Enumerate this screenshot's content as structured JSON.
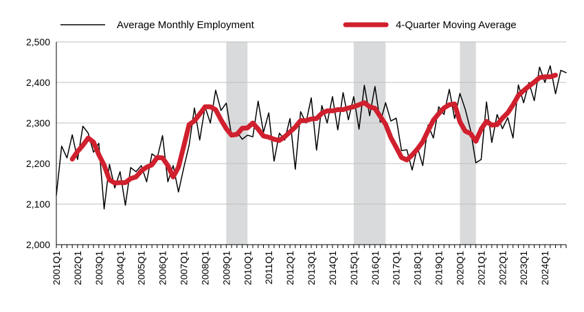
{
  "chart_data": {
    "type": "line",
    "title": "",
    "xlabel": "",
    "ylabel": "",
    "ylim": [
      2000,
      2500
    ],
    "yticks": [
      2000,
      2100,
      2200,
      2300,
      2400,
      2500
    ],
    "ytick_labels": [
      "2,000",
      "2,100",
      "2,200",
      "2,300",
      "2,400",
      "2,500"
    ],
    "x_start": "2001Q1",
    "x_tick_labels": [
      "2001Q1",
      "2002Q1",
      "2003Q1",
      "2004Q1",
      "2005Q1",
      "2006Q1",
      "2007Q1",
      "2008Q1",
      "2009Q1",
      "2010Q1",
      "2011Q1",
      "2012Q1",
      "2013Q1",
      "2014Q1",
      "2015Q1",
      "2016Q1",
      "2017Q1",
      "2018Q1",
      "2019Q1",
      "2020Q1",
      "2021Q1",
      "2022Q1",
      "2023Q1",
      "2024Q1"
    ],
    "grid": true,
    "legend_position": "top",
    "recession_shading": [
      {
        "start": "2009Q1",
        "end": "2010Q1"
      },
      {
        "start": "2015Q1",
        "end": "2016Q3"
      },
      {
        "start": "2020Q1",
        "end": "2020Q4"
      }
    ],
    "colors": {
      "monthly": "#000000",
      "moving_average": "#d0202e",
      "shading": "#d9dadb",
      "grid": "#bfbfbf"
    },
    "series": [
      {
        "name": "Average Monthly Employment",
        "start": "2001Q1",
        "values": [
          2122,
          2243,
          2214,
          2271,
          2210,
          2292,
          2275,
          2228,
          2250,
          2088,
          2198,
          2140,
          2180,
          2097,
          2190,
          2180,
          2195,
          2155,
          2224,
          2214,
          2269,
          2155,
          2195,
          2130,
          2190,
          2245,
          2337,
          2258,
          2340,
          2300,
          2381,
          2331,
          2349,
          2269,
          2278,
          2260,
          2270,
          2266,
          2354,
          2277,
          2325,
          2206,
          2275,
          2258,
          2311,
          2186,
          2328,
          2300,
          2362,
          2233,
          2343,
          2300,
          2365,
          2283,
          2375,
          2308,
          2365,
          2285,
          2393,
          2318,
          2390,
          2302,
          2350,
          2305,
          2312,
          2232,
          2234,
          2184,
          2240,
          2195,
          2295,
          2263,
          2340,
          2321,
          2383,
          2311,
          2373,
          2334,
          2282,
          2202,
          2210,
          2352,
          2252,
          2321,
          2286,
          2313,
          2263,
          2394,
          2350,
          2400,
          2355,
          2438,
          2400,
          2441,
          2372,
          2430,
          2424
        ]
      },
      {
        "name": "4-Quarter Moving Average",
        "start": "2001Q4",
        "values": [
          2211,
          2230,
          2245,
          2263,
          2253,
          2222,
          2196,
          2160,
          2152,
          2153,
          2153,
          2163,
          2167,
          2182,
          2191,
          2197,
          2215,
          2214,
          2195,
          2167,
          2191,
          2243,
          2296,
          2305,
          2322,
          2340,
          2340,
          2333,
          2308,
          2286,
          2270,
          2272,
          2287,
          2288,
          2300,
          2285,
          2268,
          2265,
          2260,
          2257,
          2266,
          2278,
          2290,
          2306,
          2306,
          2310,
          2311,
          2324,
          2330,
          2330,
          2333,
          2333,
          2337,
          2340,
          2345,
          2350,
          2340,
          2336,
          2316,
          2297,
          2264,
          2240,
          2215,
          2209,
          2221,
          2236,
          2254,
          2281,
          2307,
          2323,
          2337,
          2345,
          2347,
          2303,
          2280,
          2274,
          2255,
          2285,
          2304,
          2295,
          2296,
          2312,
          2325,
          2345,
          2368,
          2380,
          2391,
          2401,
          2412,
          2414,
          2414,
          2418
        ]
      }
    ]
  }
}
